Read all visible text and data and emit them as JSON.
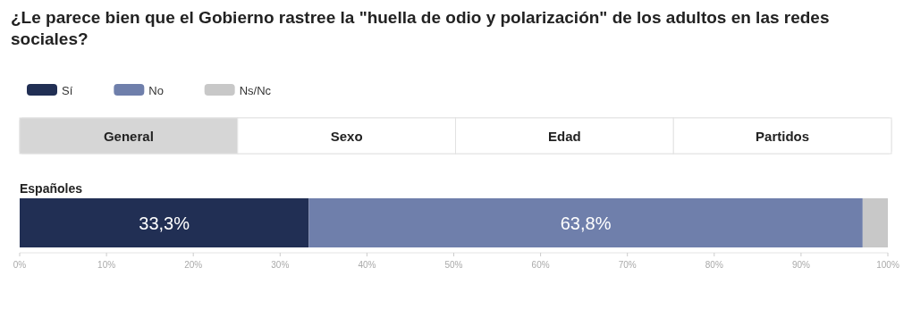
{
  "chart_data": {
    "type": "bar",
    "orientation": "horizontal",
    "stacked": true,
    "title": "¿Le parece bien que el Gobierno rastree la \"huella de odio y polarización\" de los adultos en las redes sociales?",
    "categories": [
      "Españoles"
    ],
    "series": [
      {
        "name": "Sí",
        "color": "#212f54",
        "values": [
          33.3
        ],
        "value_labels": [
          "33,3%"
        ]
      },
      {
        "name": "No",
        "color": "#6f7fab",
        "values": [
          63.8
        ],
        "value_labels": [
          "63,8%"
        ]
      },
      {
        "name": "Ns/Nc",
        "color": "#c8c8c8",
        "values": [
          2.9
        ],
        "value_labels": [
          null
        ]
      }
    ],
    "xlim": [
      0,
      100
    ],
    "xticks": [
      {
        "value": 0,
        "label": "0%"
      },
      {
        "value": 10,
        "label": "10%"
      },
      {
        "value": 20,
        "label": "20%"
      },
      {
        "value": 30,
        "label": "30%"
      },
      {
        "value": 40,
        "label": "40%"
      },
      {
        "value": 50,
        "label": "50%"
      },
      {
        "value": 60,
        "label": "60%"
      },
      {
        "value": 70,
        "label": "70%"
      },
      {
        "value": 80,
        "label": "80%"
      },
      {
        "value": 90,
        "label": "90%"
      },
      {
        "value": 100,
        "label": "100%"
      }
    ],
    "legend": "top left",
    "grid": false,
    "annotations": [
      "General",
      "Sexo",
      "Edad",
      "Partidos"
    ]
  }
}
